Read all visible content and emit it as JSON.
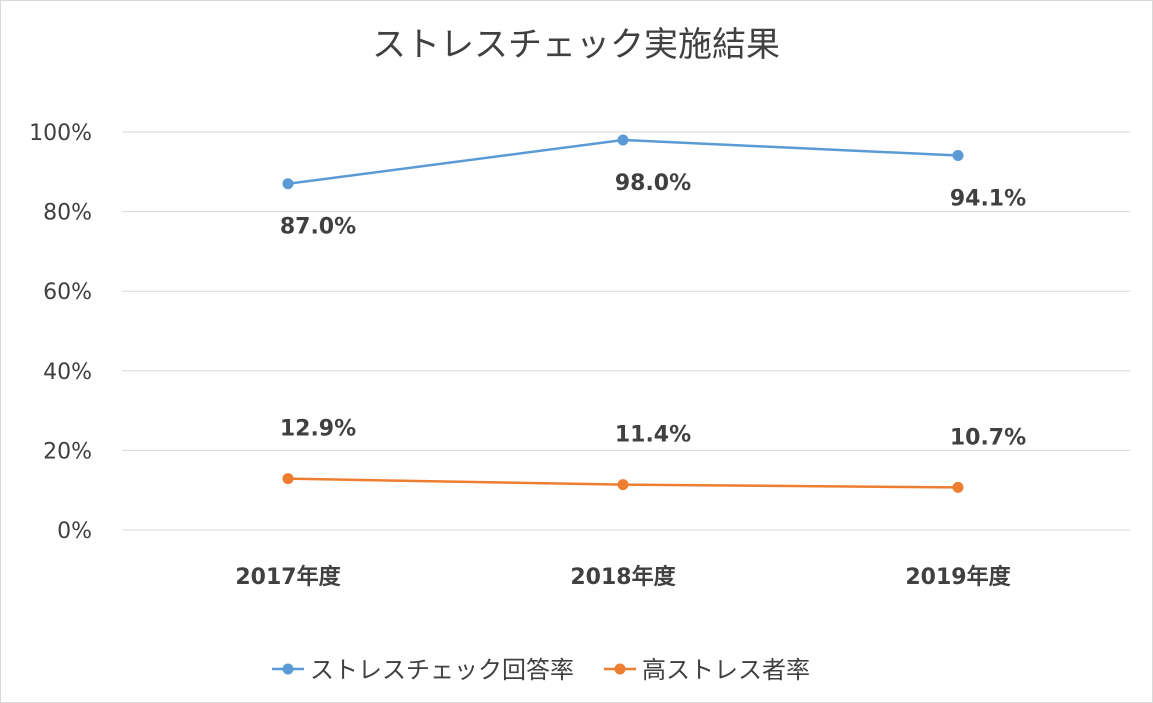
{
  "chart_data": {
    "type": "line",
    "title": "ストレスチェック実施結果",
    "categories": [
      "2017年度",
      "2018年度",
      "2019年度"
    ],
    "ylim": [
      0,
      100
    ],
    "y_ticks": [
      "0%",
      "20%",
      "40%",
      "60%",
      "80%",
      "100%"
    ],
    "grid": true,
    "legend_position": "bottom",
    "series": [
      {
        "name": "ストレスチェック回答率",
        "values": [
          87.0,
          98.0,
          94.1
        ],
        "labels": [
          "87.0%",
          "98.0%",
          "94.1%"
        ],
        "color": "#5B9BD5",
        "label_position": "below"
      },
      {
        "name": "高ストレス者率",
        "values": [
          12.9,
          11.4,
          10.7
        ],
        "labels": [
          "12.9%",
          "11.4%",
          "10.7%"
        ],
        "color": "#ED7D31",
        "label_position": "above"
      }
    ]
  }
}
